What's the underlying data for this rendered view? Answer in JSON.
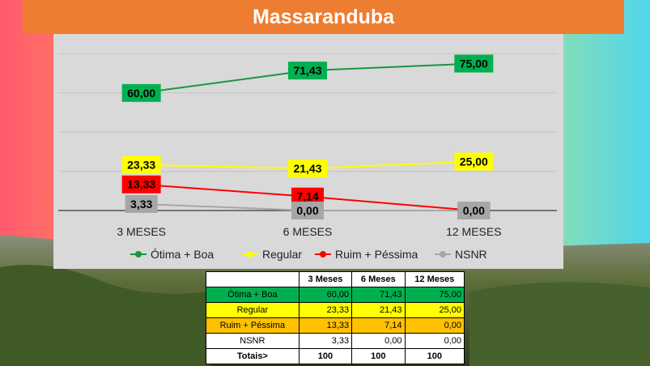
{
  "page": {
    "title": "Massaranduba",
    "colors": {
      "title_bar": "#ed7d31",
      "chart_panel": "#d9d9d9",
      "otima_boa": "#00a650",
      "regular": "#ffff00",
      "ruim_pessima": "#ff0000",
      "nsnr": "#a6a6a6"
    }
  },
  "chart_data": {
    "type": "line",
    "categories": [
      "3 MESES",
      "6 MESES",
      "12 MESES"
    ],
    "series": [
      {
        "name": "Ótima + Boa",
        "values": [
          60.0,
          71.43,
          75.0
        ],
        "labels": [
          "60,00",
          "71,43",
          "75,00"
        ],
        "color": "#1a9641",
        "label_bg": "#00b050",
        "label_color": "#000000"
      },
      {
        "name": "Regular",
        "values": [
          23.33,
          21.43,
          25.0
        ],
        "labels": [
          "23,33",
          "21,43",
          "25,00"
        ],
        "color": "#ffff00",
        "label_bg": "#ffff00",
        "label_color": "#000000"
      },
      {
        "name": "Ruim + Péssima",
        "values": [
          13.33,
          7.14,
          0.0
        ],
        "labels": [
          "13,33",
          "7,14",
          "0,00"
        ],
        "color": "#ff0000",
        "label_bg": "#ff0000",
        "label_color": "#000000"
      },
      {
        "name": "NSNR",
        "values": [
          3.33,
          0.0,
          0.0
        ],
        "labels": [
          "3,33",
          "0,00",
          "0,00"
        ],
        "color": "#a6a6a6",
        "label_bg": "#a6a6a6",
        "label_color": "#000000"
      }
    ],
    "ylim": [
      0,
      80
    ],
    "grid": true,
    "legend_position": "bottom"
  },
  "table": {
    "headers": [
      "",
      "3 Meses",
      "6 Meses",
      "12 Meses"
    ],
    "rows": [
      {
        "label": "Ótima + Boa",
        "cells": [
          "60,00",
          "71,43",
          "75,00"
        ]
      },
      {
        "label": "Regular",
        "cells": [
          "23,33",
          "21,43",
          "25,00"
        ]
      },
      {
        "label": "Ruim + Péssima",
        "cells": [
          "13,33",
          "7,14",
          "0,00"
        ]
      },
      {
        "label": "NSNR",
        "cells": [
          "3,33",
          "0,00",
          "0,00"
        ]
      }
    ],
    "total": {
      "label": "Totais>",
      "cells": [
        "100",
        "100",
        "100"
      ]
    }
  }
}
